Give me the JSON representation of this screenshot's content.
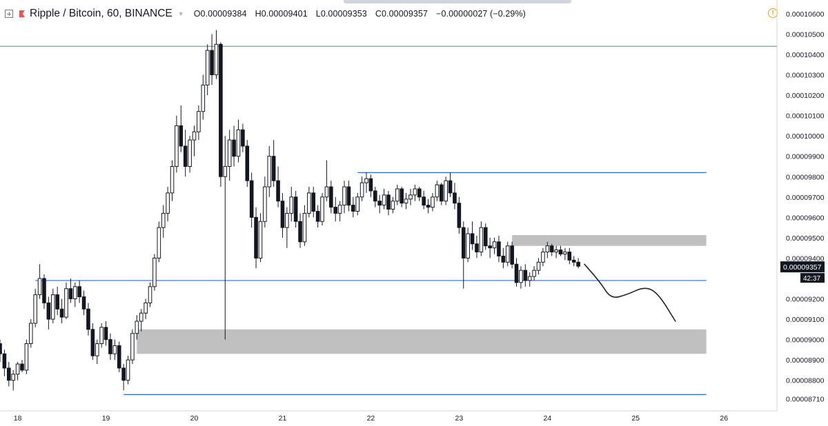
{
  "header": {
    "symbol": "Ripple / Bitcoin, 60, BINANCE",
    "ohlc": [
      {
        "key": "O",
        "value": "0.00009384"
      },
      {
        "key": "H",
        "value": "0.00009401"
      },
      {
        "key": "L",
        "value": "0.00009353"
      },
      {
        "key": "C",
        "value": "0.00009357"
      }
    ],
    "change": "−0.00000027 (−0.29%)"
  },
  "colors": {
    "candle_body": "#131722",
    "candle_up_fill": "#ffffff",
    "blue_level": "#2962ff",
    "green_level": "#4caf50",
    "zone": "#bdbdbd",
    "price_label_bg": "#131722",
    "alert": "#ff9800"
  },
  "chart_data": {
    "type": "candlestick",
    "y_axis": {
      "tick_labels": [
        "0.00010600",
        "0.00010500",
        "0.00010400",
        "0.00010300",
        "0.00010200",
        "0.00010100",
        "0.00010000",
        "0.00009900",
        "0.00009800",
        "0.00009700",
        "0.00009600",
        "0.00009500",
        "0.00009400",
        "0.00009200",
        "0.00009100",
        "0.00009000",
        "0.00008900",
        "0.00008800",
        "0.00008710"
      ],
      "tick_values": [
        0.000106,
        0.000105,
        0.000104,
        0.000103,
        0.000102,
        0.000101,
        0.0001,
        9.9e-05,
        9.8e-05,
        9.7e-05,
        9.6e-05,
        9.5e-05,
        9.4e-05,
        9.2e-05,
        9.1e-05,
        9e-05,
        8.9e-05,
        8.8e-05,
        8.71e-05
      ],
      "range": [
        8.65e-05,
        0.0001062
      ]
    },
    "x_axis": {
      "tick_labels": [
        "18",
        "19",
        "20",
        "21",
        "22",
        "23",
        "24",
        "25",
        "26"
      ],
      "tick_values": [
        18,
        19,
        20,
        21,
        22,
        23,
        24,
        25,
        26
      ],
      "range": [
        17.8,
        26.6
      ]
    },
    "last_price": {
      "label": "0.00009357",
      "countdown": "42:37",
      "value": 9.357e-05
    },
    "horizontal_levels": [
      {
        "price": 0.0001044,
        "from": 17.8,
        "to": 26.6,
        "color": "green"
      },
      {
        "price": 9.82e-05,
        "from": 21.85,
        "to": 25.8,
        "color": "blue"
      },
      {
        "price": 9.29e-05,
        "from": 18.2,
        "to": 25.8,
        "color": "blue"
      },
      {
        "price": 8.73e-05,
        "from": 19.2,
        "to": 25.8,
        "color": "blue"
      }
    ],
    "zones": [
      {
        "top": 9.513e-05,
        "bottom": 9.46e-05,
        "from": 23.6,
        "to": 25.8
      },
      {
        "top": 9.05e-05,
        "bottom": 8.93e-05,
        "from": 19.35,
        "to": 25.8
      }
    ],
    "projection_path": [
      [
        24.42,
        9.37e-05
      ],
      [
        24.6,
        9.28e-05
      ],
      [
        24.72,
        9.2e-05
      ],
      [
        24.9,
        9.22e-05
      ],
      [
        25.1,
        9.26e-05
      ],
      [
        25.25,
        9.23e-05
      ],
      [
        25.45,
        9.09e-05
      ]
    ],
    "candles": [
      [
        17.8,
        8.98e-05,
        9e-05,
        8.89e-05,
        8.93e-05
      ],
      [
        17.85,
        8.93e-05,
        8.95e-05,
        8.82e-05,
        8.86e-05
      ],
      [
        17.9,
        8.86e-05,
        8.89e-05,
        8.77e-05,
        8.8e-05
      ],
      [
        17.95,
        8.8e-05,
        8.85e-05,
        8.75e-05,
        8.83e-05
      ],
      [
        18.0,
        8.83e-05,
        8.89e-05,
        8.8e-05,
        8.88e-05
      ],
      [
        18.05,
        8.88e-05,
        8.9e-05,
        8.84e-05,
        8.85e-05
      ],
      [
        18.1,
        8.85e-05,
        9e-05,
        8.83e-05,
        8.98e-05
      ],
      [
        18.15,
        8.98e-05,
        9.1e-05,
        8.96e-05,
        9.08e-05
      ],
      [
        18.2,
        9.08e-05,
        9.25e-05,
        9.06e-05,
        9.22e-05
      ],
      [
        18.25,
        9.22e-05,
        9.37e-05,
        9.2e-05,
        9.3e-05
      ],
      [
        18.3,
        9.3e-05,
        9.32e-05,
        9.15e-05,
        9.18e-05
      ],
      [
        18.35,
        9.18e-05,
        9.21e-05,
        9.05e-05,
        9.1e-05
      ],
      [
        18.4,
        9.1e-05,
        9.25e-05,
        9.08e-05,
        9.22e-05
      ],
      [
        18.45,
        9.22e-05,
        9.26e-05,
        9.12e-05,
        9.15e-05
      ],
      [
        18.5,
        9.15e-05,
        9.2e-05,
        9.08e-05,
        9.11e-05
      ],
      [
        18.55,
        9.11e-05,
        9.28e-05,
        9.1e-05,
        9.25e-05
      ],
      [
        18.6,
        9.25e-05,
        9.3e-05,
        9.18e-05,
        9.2e-05
      ],
      [
        18.65,
        9.2e-05,
        9.28e-05,
        9.16e-05,
        9.26e-05
      ],
      [
        18.7,
        9.26e-05,
        9.29e-05,
        9.18e-05,
        9.21e-05
      ],
      [
        18.75,
        9.21e-05,
        9.24e-05,
        9.12e-05,
        9.15e-05
      ],
      [
        18.8,
        9.15e-05,
        9.18e-05,
        9.02e-05,
        9.05e-05
      ],
      [
        18.85,
        9.05e-05,
        9.08e-05,
        8.9e-05,
        8.92e-05
      ],
      [
        18.9,
        8.92e-05,
        9e-05,
        8.88e-05,
        8.98e-05
      ],
      [
        18.95,
        8.98e-05,
        9.08e-05,
        8.96e-05,
        9.06e-05
      ],
      [
        19.0,
        9.06e-05,
        9.09e-05,
        8.97e-05,
        9e-05
      ],
      [
        19.05,
        9e-05,
        9.03e-05,
        8.9e-05,
        8.93e-05
      ],
      [
        19.1,
        8.93e-05,
        9e-05,
        8.9e-05,
        8.97e-05
      ],
      [
        19.15,
        8.97e-05,
        8.99e-05,
        8.84e-05,
        8.86e-05
      ],
      [
        19.2,
        8.86e-05,
        8.88e-05,
        8.75e-05,
        8.8e-05
      ],
      [
        19.25,
        8.8e-05,
        8.92e-05,
        8.78e-05,
        8.9e-05
      ],
      [
        19.3,
        8.9e-05,
        9.05e-05,
        8.88e-05,
        9.03e-05
      ],
      [
        19.35,
        9.03e-05,
        9.12e-05,
        9e-05,
        9.09e-05
      ],
      [
        19.4,
        9.09e-05,
        9.15e-05,
        9.04e-05,
        9.13e-05
      ],
      [
        19.45,
        9.13e-05,
        9.2e-05,
        9.1e-05,
        9.18e-05
      ],
      [
        19.5,
        9.18e-05,
        9.28e-05,
        9.16e-05,
        9.26e-05
      ],
      [
        19.55,
        9.26e-05,
        9.42e-05,
        9.24e-05,
        9.4e-05
      ],
      [
        19.6,
        9.4e-05,
        9.58e-05,
        9.38e-05,
        9.55e-05
      ],
      [
        19.65,
        9.55e-05,
        9.66e-05,
        9.5e-05,
        9.62e-05
      ],
      [
        19.7,
        9.62e-05,
        9.75e-05,
        9.58e-05,
        9.72e-05
      ],
      [
        19.75,
        9.72e-05,
        9.88e-05,
        9.68e-05,
        9.85e-05
      ],
      [
        19.8,
        9.85e-05,
        0.000101,
        9.82e-05,
        0.0001005
      ],
      [
        19.85,
        0.0001005,
        0.0001015,
        9.92e-05,
        9.95e-05
      ],
      [
        19.9,
        9.95e-05,
        0.0001003,
        9.8e-05,
        9.85e-05
      ],
      [
        19.95,
        9.85e-05,
        0.0001,
        9.82e-05,
        9.98e-05
      ],
      [
        20.0,
        9.98e-05,
        0.0001005,
        9.9e-05,
        0.0001002
      ],
      [
        20.05,
        0.0001002,
        0.0001015,
        9.98e-05,
        0.0001012
      ],
      [
        20.1,
        0.0001012,
        0.000103,
        0.0001008,
        0.0001025
      ],
      [
        20.15,
        0.0001025,
        0.0001045,
        0.000102,
        0.0001042
      ],
      [
        20.2,
        0.0001042,
        0.000105,
        0.0001025,
        0.000103
      ],
      [
        20.25,
        0.000103,
        0.0001052,
        0.0001028,
        0.0001045
      ],
      [
        20.3,
        0.0001045,
        0.0001046,
        9.75e-05,
        9.8e-05
      ],
      [
        20.35,
        9.8e-05,
        0.0001,
        9e-05,
        9.85e-05
      ],
      [
        20.4,
        9.85e-05,
        0.0001003,
        9.78e-05,
        9.98e-05
      ],
      [
        20.45,
        9.98e-05,
        0.0001005,
        9.85e-05,
        9.9e-05
      ],
      [
        20.5,
        9.9e-05,
        0.0001008,
        9.87e-05,
        0.0001003
      ],
      [
        20.55,
        0.0001003,
        0.0001006,
        9.92e-05,
        9.95e-05
      ],
      [
        20.6,
        9.95e-05,
        9.98e-05,
        9.75e-05,
        9.78e-05
      ],
      [
        20.65,
        9.78e-05,
        9.82e-05,
        9.55e-05,
        9.6e-05
      ],
      [
        20.7,
        9.6e-05,
        9.65e-05,
        9.35e-05,
        9.4e-05
      ],
      [
        20.75,
        9.4e-05,
        9.62e-05,
        9.38e-05,
        9.58e-05
      ],
      [
        20.8,
        9.58e-05,
        9.8e-05,
        9.55e-05,
        9.75e-05
      ],
      [
        20.85,
        9.75e-05,
        9.95e-05,
        9.7e-05,
        9.9e-05
      ],
      [
        20.9,
        9.9e-05,
        9.98e-05,
        9.75e-05,
        9.78e-05
      ],
      [
        20.95,
        9.78e-05,
        9.85e-05,
        9.65e-05,
        9.68e-05
      ],
      [
        21.0,
        9.68e-05,
        9.72e-05,
        9.5e-05,
        9.55e-05
      ],
      [
        21.05,
        9.55e-05,
        9.65e-05,
        9.45e-05,
        9.62e-05
      ],
      [
        21.1,
        9.62e-05,
        9.75e-05,
        9.58e-05,
        9.7e-05
      ],
      [
        21.15,
        9.7e-05,
        9.73e-05,
        9.55e-05,
        9.58e-05
      ],
      [
        21.2,
        9.58e-05,
        9.62e-05,
        9.45e-05,
        9.48e-05
      ],
      [
        21.25,
        9.48e-05,
        9.66e-05,
        9.46e-05,
        9.62e-05
      ],
      [
        21.3,
        9.62e-05,
        9.75e-05,
        9.6e-05,
        9.72e-05
      ],
      [
        21.35,
        9.72e-05,
        9.75e-05,
        9.6e-05,
        9.63e-05
      ],
      [
        21.4,
        9.63e-05,
        9.66e-05,
        9.55e-05,
        9.58e-05
      ],
      [
        21.45,
        9.58e-05,
        9.72e-05,
        9.56e-05,
        9.7e-05
      ],
      [
        21.5,
        9.7e-05,
        9.88e-05,
        9.68e-05,
        9.75e-05
      ],
      [
        21.55,
        9.75e-05,
        9.78e-05,
        9.62e-05,
        9.65e-05
      ],
      [
        21.6,
        9.65e-05,
        9.7e-05,
        9.58e-05,
        9.62e-05
      ],
      [
        21.65,
        9.62e-05,
        9.68e-05,
        9.58e-05,
        9.66e-05
      ],
      [
        21.7,
        9.66e-05,
        9.78e-05,
        9.62e-05,
        9.75e-05
      ],
      [
        21.75,
        9.75e-05,
        9.78e-05,
        9.63e-05,
        9.66e-05
      ],
      [
        21.8,
        9.66e-05,
        9.7e-05,
        9.6e-05,
        9.63e-05
      ],
      [
        21.85,
        9.63e-05,
        9.72e-05,
        9.61e-05,
        9.7e-05
      ],
      [
        21.9,
        9.7e-05,
        9.8e-05,
        9.68e-05,
        9.77e-05
      ],
      [
        21.95,
        9.77e-05,
        9.82e-05,
        9.72e-05,
        9.79e-05
      ],
      [
        22.0,
        9.79e-05,
        9.81e-05,
        9.7e-05,
        9.73e-05
      ],
      [
        22.05,
        9.73e-05,
        9.75e-05,
        9.65e-05,
        9.68e-05
      ],
      [
        22.1,
        9.68e-05,
        9.71e-05,
        9.62e-05,
        9.66e-05
      ],
      [
        22.15,
        9.66e-05,
        9.74e-05,
        9.64e-05,
        9.71e-05
      ],
      [
        22.2,
        9.71e-05,
        9.73e-05,
        9.61e-05,
        9.64e-05
      ],
      [
        22.25,
        9.64e-05,
        9.7e-05,
        9.62e-05,
        9.68e-05
      ],
      [
        22.3,
        9.68e-05,
        9.76e-05,
        9.66e-05,
        9.74e-05
      ],
      [
        22.35,
        9.74e-05,
        9.75e-05,
        9.65e-05,
        9.67e-05
      ],
      [
        22.4,
        9.67e-05,
        9.72e-05,
        9.64e-05,
        9.69e-05
      ],
      [
        22.45,
        9.69e-05,
        9.74e-05,
        9.66e-05,
        9.71e-05
      ],
      [
        22.5,
        9.71e-05,
        9.76e-05,
        9.68e-05,
        9.74e-05
      ],
      [
        22.55,
        9.74e-05,
        9.75e-05,
        9.68e-05,
        9.7e-05
      ],
      [
        22.6,
        9.7e-05,
        9.73e-05,
        9.64e-05,
        9.66e-05
      ],
      [
        22.65,
        9.66e-05,
        9.69e-05,
        9.62e-05,
        9.65e-05
      ],
      [
        22.7,
        9.65e-05,
        9.72e-05,
        9.63e-05,
        9.7e-05
      ],
      [
        22.75,
        9.7e-05,
        9.78e-05,
        9.68e-05,
        9.76e-05
      ],
      [
        22.8,
        9.76e-05,
        9.77e-05,
        9.66e-05,
        9.68e-05
      ],
      [
        22.85,
        9.68e-05,
        9.8e-05,
        9.66e-05,
        9.78e-05
      ],
      [
        22.9,
        9.78e-05,
        9.82e-05,
        9.7e-05,
        9.72e-05
      ],
      [
        22.95,
        9.72e-05,
        9.77e-05,
        9.64e-05,
        9.67e-05
      ],
      [
        23.0,
        9.67e-05,
        9.7e-05,
        9.52e-05,
        9.55e-05
      ],
      [
        23.05,
        9.55e-05,
        9.58e-05,
        9.25e-05,
        9.4e-05
      ],
      [
        23.1,
        9.4e-05,
        9.55e-05,
        9.38e-05,
        9.52e-05
      ],
      [
        23.15,
        9.52e-05,
        9.58e-05,
        9.44e-05,
        9.47e-05
      ],
      [
        23.2,
        9.47e-05,
        9.51e-05,
        9.4e-05,
        9.43e-05
      ],
      [
        23.25,
        9.43e-05,
        9.58e-05,
        9.41e-05,
        9.55e-05
      ],
      [
        23.3,
        9.55e-05,
        9.57e-05,
        9.44e-05,
        9.46e-05
      ],
      [
        23.35,
        9.46e-05,
        9.5e-05,
        9.4e-05,
        9.45e-05
      ],
      [
        23.4,
        9.45e-05,
        9.5e-05,
        9.42e-05,
        9.48e-05
      ],
      [
        23.45,
        9.48e-05,
        9.51e-05,
        9.38e-05,
        9.41e-05
      ],
      [
        23.5,
        9.41e-05,
        9.45e-05,
        9.35e-05,
        9.38e-05
      ],
      [
        23.55,
        9.38e-05,
        9.48e-05,
        9.36e-05,
        9.46e-05
      ],
      [
        23.6,
        9.46e-05,
        9.48e-05,
        9.35e-05,
        9.37e-05
      ],
      [
        23.65,
        9.37e-05,
        9.4e-05,
        9.26e-05,
        9.28e-05
      ],
      [
        23.7,
        9.28e-05,
        9.36e-05,
        9.25e-05,
        9.34e-05
      ],
      [
        23.75,
        9.34e-05,
        9.37e-05,
        9.26e-05,
        9.29e-05
      ],
      [
        23.8,
        9.29e-05,
        9.33e-05,
        9.26e-05,
        9.31e-05
      ],
      [
        23.85,
        9.31e-05,
        9.36e-05,
        9.29e-05,
        9.34e-05
      ],
      [
        23.9,
        9.34e-05,
        9.4e-05,
        9.32e-05,
        9.38e-05
      ],
      [
        23.95,
        9.38e-05,
        9.45e-05,
        9.36e-05,
        9.43e-05
      ],
      [
        24.0,
        9.43e-05,
        9.48e-05,
        9.4e-05,
        9.46e-05
      ],
      [
        24.05,
        9.46e-05,
        9.47e-05,
        9.41e-05,
        9.43e-05
      ],
      [
        24.1,
        9.43e-05,
        9.46e-05,
        9.4e-05,
        9.44e-05
      ],
      [
        24.15,
        9.44e-05,
        9.46e-05,
        9.41e-05,
        9.42e-05
      ],
      [
        24.2,
        9.42e-05,
        9.45e-05,
        9.39e-05,
        9.43e-05
      ],
      [
        24.25,
        9.43e-05,
        9.45e-05,
        9.37e-05,
        9.39e-05
      ],
      [
        24.3,
        9.39e-05,
        9.41e-05,
        9.36e-05,
        9.38e-05
      ],
      [
        24.35,
        9.38e-05,
        9.4e-05,
        9.35e-05,
        9.36e-05
      ]
    ]
  }
}
